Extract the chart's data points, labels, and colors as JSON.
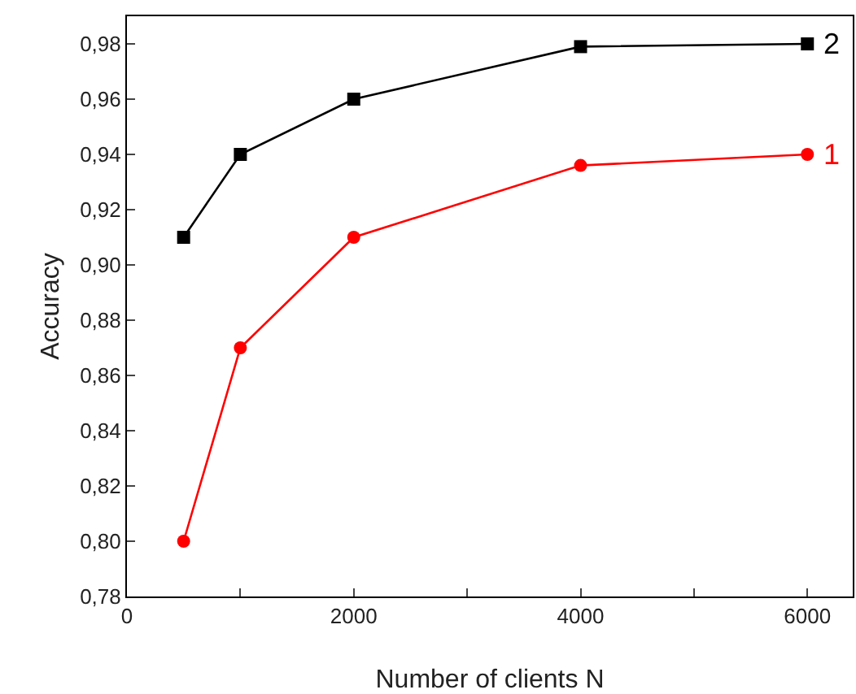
{
  "chart_data": {
    "type": "line",
    "xlabel": "Number of clients N",
    "ylabel": "Accuracy",
    "x": [
      500,
      1000,
      2000,
      4000,
      6000
    ],
    "series": [
      {
        "name": "2",
        "color": "#000000",
        "marker": "square",
        "values": [
          0.91,
          0.94,
          0.96,
          0.979,
          0.98
        ]
      },
      {
        "name": "1",
        "color": "#ff0000",
        "marker": "circle",
        "values": [
          0.8,
          0.87,
          0.91,
          0.936,
          0.94
        ]
      }
    ],
    "xlim": [
      0,
      6400
    ],
    "xticks": [
      0,
      {
        "value": 1000,
        "label": null
      },
      2000,
      {
        "value": 3000,
        "label": null
      },
      4000,
      {
        "value": 5000,
        "label": null
      },
      6000
    ],
    "ylim": [
      0.78,
      0.99
    ],
    "yticks": [
      {
        "value": 0.78,
        "label": "0,78"
      },
      {
        "value": 0.8,
        "label": "0,80"
      },
      {
        "value": 0.82,
        "label": "0,82"
      },
      {
        "value": 0.84,
        "label": "0,84"
      },
      {
        "value": 0.86,
        "label": "0,86"
      },
      {
        "value": 0.88,
        "label": "0,88"
      },
      {
        "value": 0.9,
        "label": "0,90"
      },
      {
        "value": 0.92,
        "label": "0,92"
      },
      {
        "value": 0.94,
        "label": "0,94"
      },
      {
        "value": 0.96,
        "label": "0,96"
      },
      {
        "value": 0.98,
        "label": "0,98"
      }
    ],
    "grid": false,
    "legend": false,
    "line_style": "solid"
  }
}
